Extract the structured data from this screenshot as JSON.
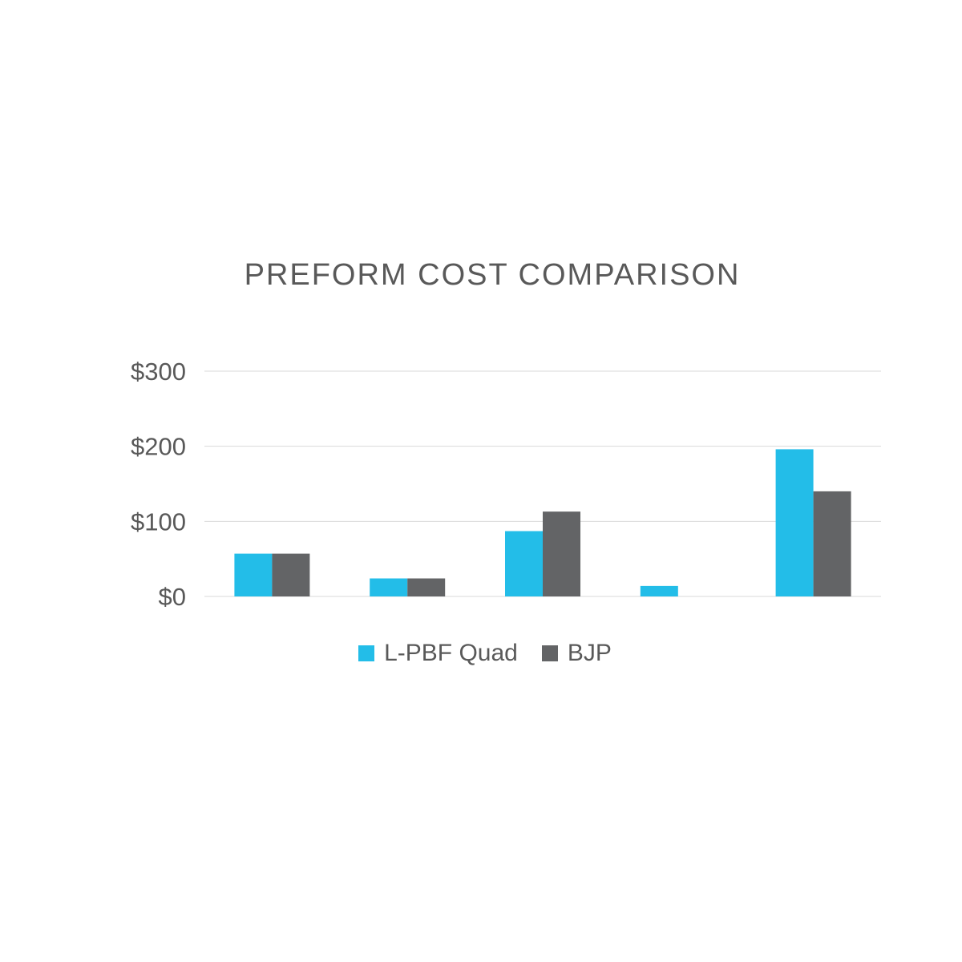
{
  "chart_data": {
    "type": "bar",
    "title": "PREFORM COST COMPARISON",
    "categories": [
      "",
      "",
      "",
      "",
      ""
    ],
    "series": [
      {
        "name": "L-PBF Quad",
        "color": "#23BDE8",
        "values": [
          57,
          24,
          87,
          14,
          196
        ]
      },
      {
        "name": "BJP",
        "color": "#636466",
        "values": [
          57,
          24,
          113,
          0,
          140
        ]
      }
    ],
    "ylim": [
      0,
      300
    ],
    "yticks": [
      {
        "value": 0,
        "label": "$0"
      },
      {
        "value": 100,
        "label": "$100"
      },
      {
        "value": 200,
        "label": "$200"
      },
      {
        "value": 300,
        "label": "$300"
      }
    ],
    "grid": true,
    "legend_position": "bottom"
  }
}
